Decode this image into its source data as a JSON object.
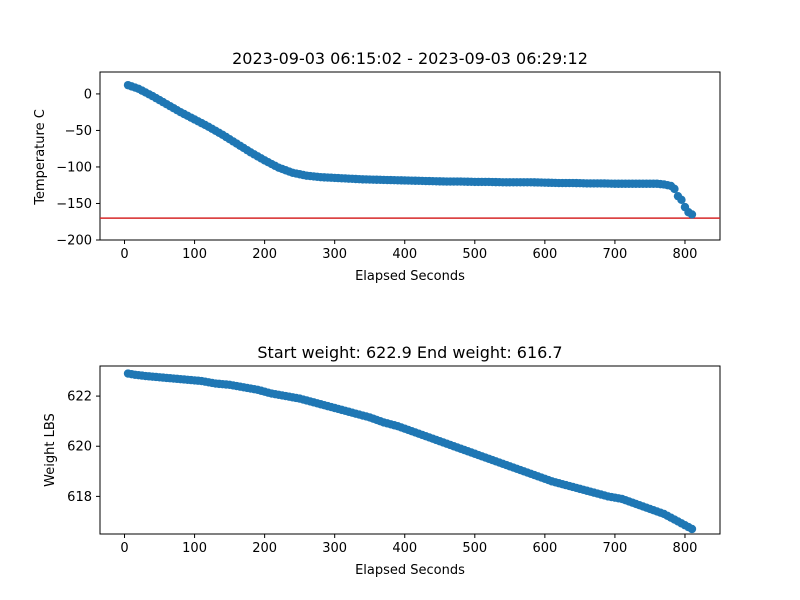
{
  "chart_data": [
    {
      "type": "scatter",
      "title": "2023-09-03 06:15:02 - 2023-09-03 06:29:12",
      "xlabel": "Elapsed Seconds",
      "ylabel": "Temperature C",
      "xlim": [
        -35,
        850
      ],
      "ylim": [
        -200,
        30
      ],
      "xticks": [
        0,
        100,
        200,
        300,
        400,
        500,
        600,
        700,
        800
      ],
      "yticks": [
        -200,
        -150,
        -100,
        -50,
        0
      ],
      "xtick_labels": [
        "0",
        "100",
        "200",
        "300",
        "400",
        "500",
        "600",
        "700",
        "800"
      ],
      "ytick_labels": [
        "−200",
        "−150",
        "−100",
        "−50",
        "0"
      ],
      "grid": false,
      "marker_color": "#1f77b4",
      "reference_line": {
        "y": -170,
        "color": "#d62728"
      },
      "series": [
        {
          "x": [
            5,
            20,
            40,
            60,
            80,
            100,
            120,
            140,
            160,
            180,
            200,
            220,
            240,
            260,
            280,
            300,
            320,
            340,
            360,
            380,
            400,
            420,
            440,
            460,
            480,
            500,
            520,
            540,
            560,
            580,
            600,
            620,
            640,
            660,
            680,
            700,
            720,
            740,
            760,
            770,
            780,
            785,
            790,
            795,
            800,
            805,
            810
          ],
          "y": [
            12,
            7,
            -3,
            -14,
            -25,
            -35,
            -45,
            -56,
            -68,
            -80,
            -91,
            -101,
            -108,
            -112,
            -114,
            -115,
            -116,
            -117,
            -117.5,
            -118,
            -118.5,
            -119,
            -119.5,
            -120,
            -120,
            -120.5,
            -120.5,
            -121,
            -121,
            -121,
            -121.5,
            -122,
            -122,
            -122.5,
            -122.5,
            -123,
            -123,
            -123,
            -123,
            -124,
            -126,
            -130,
            -140,
            -145,
            -155,
            -162,
            -165
          ]
        }
      ]
    },
    {
      "type": "scatter",
      "title": "Start weight: 622.9 End weight: 616.7",
      "xlabel": "Elapsed Seconds",
      "ylabel": "Weight LBS",
      "xlim": [
        -35,
        850
      ],
      "ylim": [
        616.5,
        623.2
      ],
      "xticks": [
        0,
        100,
        200,
        300,
        400,
        500,
        600,
        700,
        800
      ],
      "yticks": [
        618,
        620,
        622
      ],
      "xtick_labels": [
        "0",
        "100",
        "200",
        "300",
        "400",
        "500",
        "600",
        "700",
        "800"
      ],
      "ytick_labels": [
        "618",
        "620",
        "622"
      ],
      "grid": false,
      "marker_color": "#1f77b4",
      "series": [
        {
          "x": [
            5,
            15,
            30,
            50,
            70,
            90,
            110,
            130,
            150,
            170,
            190,
            210,
            230,
            250,
            270,
            290,
            310,
            330,
            350,
            370,
            390,
            410,
            430,
            450,
            470,
            490,
            510,
            530,
            550,
            570,
            590,
            610,
            630,
            650,
            670,
            690,
            710,
            730,
            750,
            770,
            790,
            800,
            810
          ],
          "y": [
            622.9,
            622.85,
            622.8,
            622.75,
            622.7,
            622.65,
            622.6,
            622.5,
            622.45,
            622.35,
            622.25,
            622.1,
            622.0,
            621.9,
            621.75,
            621.6,
            621.45,
            621.3,
            621.15,
            620.95,
            620.8,
            620.6,
            620.4,
            620.2,
            620.0,
            619.8,
            619.6,
            619.4,
            619.2,
            619.0,
            618.8,
            618.6,
            618.45,
            618.3,
            618.15,
            618.0,
            617.9,
            617.7,
            617.5,
            617.3,
            617.0,
            616.85,
            616.7
          ]
        }
      ]
    }
  ]
}
